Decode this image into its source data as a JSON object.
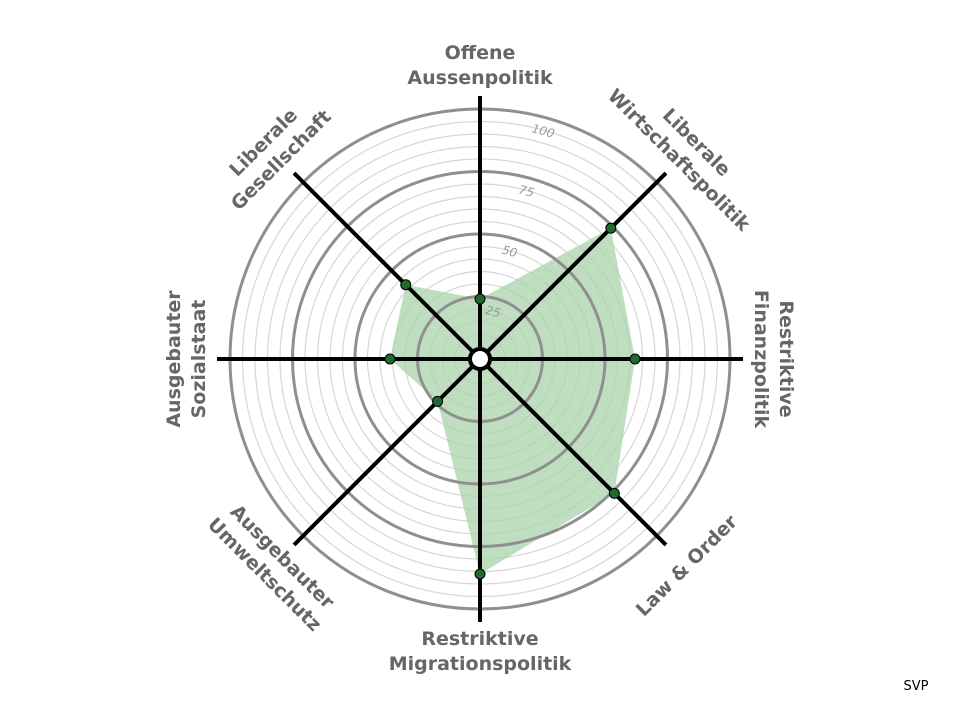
{
  "chart_data": {
    "type": "radar",
    "categories": [
      [
        "Offene",
        "Aussenpolitik"
      ],
      [
        "Liberale",
        "Wirtschaftspolitik"
      ],
      [
        "Restriktive",
        "Finanzpolitik"
      ],
      [
        "Law & Order"
      ],
      [
        "Restriktive",
        "Migrationspolitik"
      ],
      [
        "Ausgebauter",
        "Umweltschutz"
      ],
      [
        "Ausgebauter",
        "Sozialstaat"
      ],
      [
        "Liberale",
        "Gesellschaft"
      ]
    ],
    "values": [
      24,
      74,
      62,
      76,
      86,
      24,
      36,
      42
    ],
    "color": "#a9d3ab",
    "point_color": "#1f6b2e",
    "rlim": [
      0,
      100
    ],
    "rticks": [
      25,
      50,
      75,
      100
    ],
    "minor_ring_step": 5,
    "source": "SVP"
  }
}
